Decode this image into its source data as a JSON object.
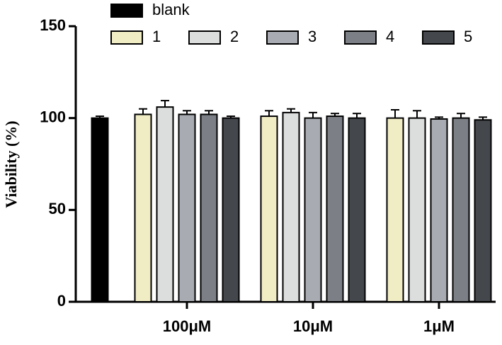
{
  "chart_data": {
    "type": "bar",
    "ylabel": "Viability (%)",
    "categories": [
      null,
      "100μM",
      "10μM",
      "1μM"
    ],
    "series": [
      {
        "name": "blank",
        "color": "#000000",
        "values": [
          100,
          null,
          null,
          null
        ],
        "errors": [
          1,
          null,
          null,
          null
        ]
      },
      {
        "name": "1",
        "color": "#f0ecc4",
        "values": [
          null,
          102,
          101,
          100
        ],
        "errors": [
          null,
          3,
          3,
          4.5
        ]
      },
      {
        "name": "2",
        "color": "#dcdddd",
        "values": [
          null,
          106,
          103,
          100
        ],
        "errors": [
          null,
          3.5,
          2,
          4
        ]
      },
      {
        "name": "3",
        "color": "#a8acb2",
        "values": [
          null,
          102,
          100,
          99.5
        ],
        "errors": [
          null,
          2,
          3,
          1
        ]
      },
      {
        "name": "4",
        "color": "#7c8086",
        "values": [
          null,
          102,
          101,
          100
        ],
        "errors": [
          null,
          2,
          1.5,
          2.5
        ]
      },
      {
        "name": "5",
        "color": "#44484d",
        "values": [
          null,
          100,
          100,
          99
        ],
        "errors": [
          null,
          1,
          2.5,
          1.5
        ]
      }
    ],
    "ylim": [
      0,
      150
    ],
    "yticks": [
      0,
      50,
      100,
      150
    ]
  }
}
